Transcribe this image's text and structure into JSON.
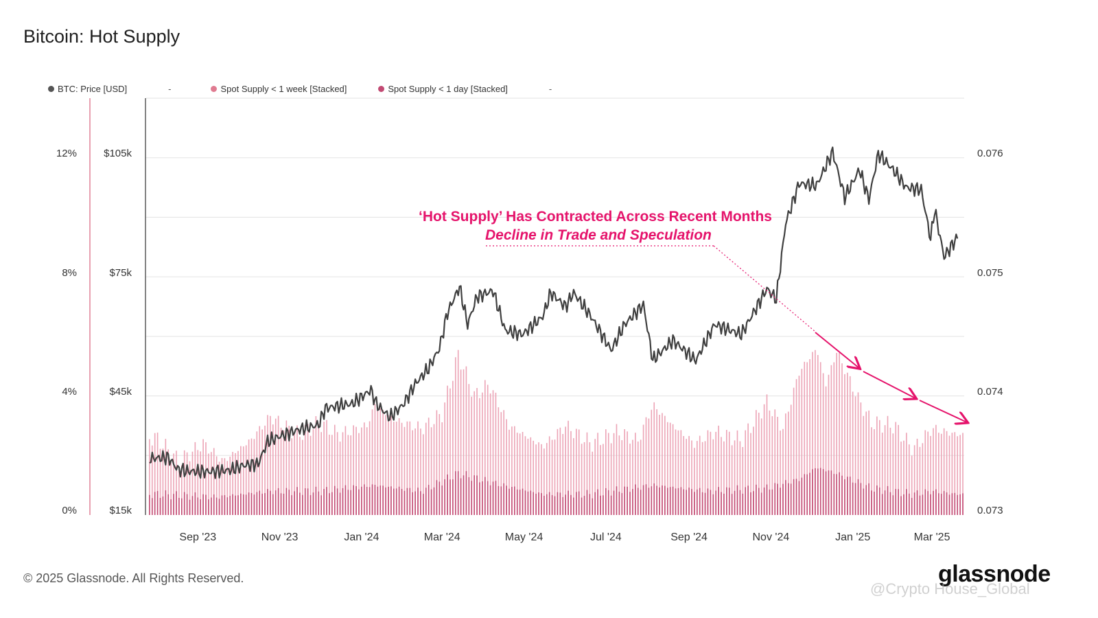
{
  "title": "Bitcoin: Hot Supply",
  "legend": [
    {
      "label": "BTC: Price [USD]",
      "color": "#555555",
      "suffix": "-"
    },
    {
      "label": "Spot Supply < 1 week [Stacked]",
      "color": "#e07b91",
      "suffix": ""
    },
    {
      "label": "Spot Supply < 1 day [Stacked]",
      "color": "#c24a73",
      "suffix": "-"
    }
  ],
  "annotation": {
    "headline": "‘Hot Supply’ Has Contracted Across Recent Months",
    "subline": "Decline in Trade and Speculation"
  },
  "footer": {
    "copyright": "© 2025 Glassnode. All Rights Reserved.",
    "brand": "glassnode",
    "watermark": "@Crypto House_Global"
  },
  "colors": {
    "accent": "#e5136b",
    "price_line": "#444444",
    "week_area": "#eaa0b2",
    "day_area": "#c24a73"
  },
  "chart_data": {
    "type": "area",
    "x_ticks": [
      "Sep '23",
      "Nov '23",
      "Jan '24",
      "Mar '24",
      "May '24",
      "Jul '24",
      "Sep '24",
      "Nov '24",
      "Jan '25",
      "Mar '25"
    ],
    "y_left_pct_ticks": [
      "0%",
      "4%",
      "8%",
      "12%"
    ],
    "y_left_price_ticks": [
      "$15k",
      "$45k",
      "$75k",
      "$105k"
    ],
    "y_right_ticks": [
      "0.073",
      "0.074",
      "0.075",
      "0.076"
    ],
    "price_range": [
      15000,
      120000
    ],
    "pct_range": [
      0,
      14
    ],
    "grid": true,
    "legend_position": "top-left",
    "series": [
      {
        "name": "BTC: Price [USD]",
        "axis": "price",
        "points": [
          [
            "2023-08-01",
            29300
          ],
          [
            "2023-08-10",
            29500
          ],
          [
            "2023-08-17",
            26500
          ],
          [
            "2023-08-25",
            26000
          ],
          [
            "2023-09-10",
            25900
          ],
          [
            "2023-09-25",
            26300
          ],
          [
            "2023-10-05",
            27500
          ],
          [
            "2023-10-16",
            27900
          ],
          [
            "2023-10-23",
            33500
          ],
          [
            "2023-11-01",
            34800
          ],
          [
            "2023-11-15",
            36500
          ],
          [
            "2023-11-30",
            37700
          ],
          [
            "2023-12-05",
            41900
          ],
          [
            "2023-12-15",
            42500
          ],
          [
            "2023-12-25",
            43000
          ],
          [
            "2024-01-08",
            46500
          ],
          [
            "2024-01-12",
            43000
          ],
          [
            "2024-01-22",
            39600
          ],
          [
            "2024-02-01",
            42800
          ],
          [
            "2024-02-10",
            48000
          ],
          [
            "2024-02-20",
            52000
          ],
          [
            "2024-02-28",
            57000
          ],
          [
            "2024-03-05",
            66000
          ],
          [
            "2024-03-14",
            72500
          ],
          [
            "2024-03-20",
            63000
          ],
          [
            "2024-03-27",
            70000
          ],
          [
            "2024-04-08",
            71500
          ],
          [
            "2024-04-17",
            61500
          ],
          [
            "2024-04-30",
            60500
          ],
          [
            "2024-05-15",
            65000
          ],
          [
            "2024-05-21",
            71000
          ],
          [
            "2024-06-01",
            67500
          ],
          [
            "2024-06-07",
            71000
          ],
          [
            "2024-06-20",
            65000
          ],
          [
            "2024-07-05",
            56500
          ],
          [
            "2024-07-15",
            63000
          ],
          [
            "2024-07-29",
            68000
          ],
          [
            "2024-08-05",
            54000
          ],
          [
            "2024-08-20",
            59000
          ],
          [
            "2024-09-06",
            53900
          ],
          [
            "2024-09-20",
            63000
          ],
          [
            "2024-10-10",
            60500
          ],
          [
            "2024-10-29",
            72000
          ],
          [
            "2024-11-05",
            69400
          ],
          [
            "2024-11-12",
            88500
          ],
          [
            "2024-11-22",
            98500
          ],
          [
            "2024-12-05",
            98000
          ],
          [
            "2024-12-17",
            106500
          ],
          [
            "2024-12-26",
            95000
          ],
          [
            "2025-01-06",
            102000
          ],
          [
            "2025-01-13",
            94500
          ],
          [
            "2025-01-20",
            106000
          ],
          [
            "2025-01-31",
            102000
          ],
          [
            "2025-02-10",
            97500
          ],
          [
            "2025-02-21",
            97000
          ],
          [
            "2025-02-28",
            84500
          ],
          [
            "2025-03-03",
            92000
          ],
          [
            "2025-03-10",
            80000
          ],
          [
            "2025-03-20",
            85000
          ]
        ]
      },
      {
        "name": "Spot Supply < 1 week [Stacked]",
        "axis": "pct",
        "points": [
          [
            "2023-08-01",
            2.6
          ],
          [
            "2023-08-18",
            1.8
          ],
          [
            "2023-09-05",
            2.4
          ],
          [
            "2023-09-20",
            1.8
          ],
          [
            "2023-10-10",
            2.5
          ],
          [
            "2023-10-25",
            3.3
          ],
          [
            "2023-11-15",
            2.7
          ],
          [
            "2023-12-01",
            3.1
          ],
          [
            "2023-12-15",
            2.7
          ],
          [
            "2024-01-05",
            3.0
          ],
          [
            "2024-01-11",
            3.7
          ],
          [
            "2024-01-25",
            3.2
          ],
          [
            "2024-02-15",
            2.9
          ],
          [
            "2024-03-01",
            3.4
          ],
          [
            "2024-03-13",
            5.4
          ],
          [
            "2024-03-25",
            4.0
          ],
          [
            "2024-04-05",
            4.4
          ],
          [
            "2024-04-20",
            3.0
          ],
          [
            "2024-05-15",
            2.3
          ],
          [
            "2024-06-01",
            3.0
          ],
          [
            "2024-06-20",
            2.4
          ],
          [
            "2024-07-10",
            2.8
          ],
          [
            "2024-07-25",
            2.5
          ],
          [
            "2024-08-05",
            3.7
          ],
          [
            "2024-08-20",
            3.0
          ],
          [
            "2024-09-05",
            2.4
          ],
          [
            "2024-09-20",
            2.8
          ],
          [
            "2024-10-10",
            2.5
          ],
          [
            "2024-10-29",
            3.8
          ],
          [
            "2024-11-10",
            2.9
          ],
          [
            "2024-11-22",
            4.8
          ],
          [
            "2024-12-05",
            5.6
          ],
          [
            "2024-12-12",
            4.4
          ],
          [
            "2024-12-20",
            5.5
          ],
          [
            "2025-01-05",
            3.9
          ],
          [
            "2025-01-15",
            3.1
          ],
          [
            "2025-02-01",
            3.0
          ],
          [
            "2025-02-15",
            2.2
          ],
          [
            "2025-03-01",
            2.9
          ],
          [
            "2025-03-20",
            2.7
          ]
        ]
      },
      {
        "name": "Spot Supply < 1 day [Stacked]",
        "axis": "pct",
        "points": [
          [
            "2023-08-01",
            0.7
          ],
          [
            "2023-09-15",
            0.6
          ],
          [
            "2023-10-25",
            0.8
          ],
          [
            "2023-12-01",
            0.8
          ],
          [
            "2024-01-11",
            1.0
          ],
          [
            "2024-02-15",
            0.8
          ],
          [
            "2024-03-13",
            1.4
          ],
          [
            "2024-04-15",
            1.0
          ],
          [
            "2024-05-15",
            0.7
          ],
          [
            "2024-06-20",
            0.7
          ],
          [
            "2024-08-05",
            1.0
          ],
          [
            "2024-09-15",
            0.8
          ],
          [
            "2024-10-29",
            0.9
          ],
          [
            "2024-11-22",
            1.2
          ],
          [
            "2024-12-05",
            1.6
          ],
          [
            "2024-12-20",
            1.4
          ],
          [
            "2025-01-15",
            0.9
          ],
          [
            "2025-02-15",
            0.7
          ],
          [
            "2025-03-01",
            0.8
          ],
          [
            "2025-03-20",
            0.7
          ]
        ]
      }
    ]
  }
}
